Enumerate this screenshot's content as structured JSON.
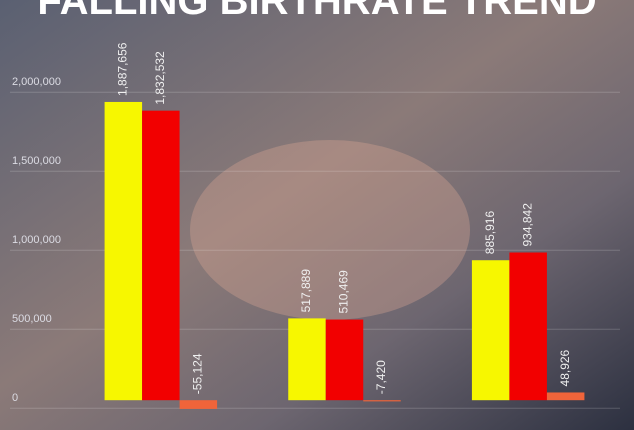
{
  "chart_data": {
    "type": "bar",
    "title": "FALLING BIRTHRATE TREND",
    "series": [
      {
        "color": "#f7f700",
        "values": [
          1887656,
          517889,
          885916
        ],
        "value_labels": [
          "1,887,656",
          "517,889",
          "885,916"
        ]
      },
      {
        "color": "#f20000",
        "values": [
          1832532,
          510469,
          934842
        ],
        "value_labels": [
          "1,832,532",
          "510,469",
          "934,842"
        ]
      },
      {
        "color": "#f0643a",
        "values": [
          -55124,
          -7420,
          48926
        ],
        "value_labels": [
          "-55,124",
          "-7,420",
          "48,926"
        ]
      }
    ],
    "ylim": [
      -100000,
      2400000
    ],
    "yticks": [
      0,
      {
        "value": 500000,
        "label": "500,000"
      },
      {
        "value": 1000000,
        "label": "1,000,000"
      },
      {
        "value": 1500000,
        "label": "1,500,000"
      },
      {
        "value": 2000000,
        "label": "2,000,000"
      }
    ],
    "grid": true
  }
}
